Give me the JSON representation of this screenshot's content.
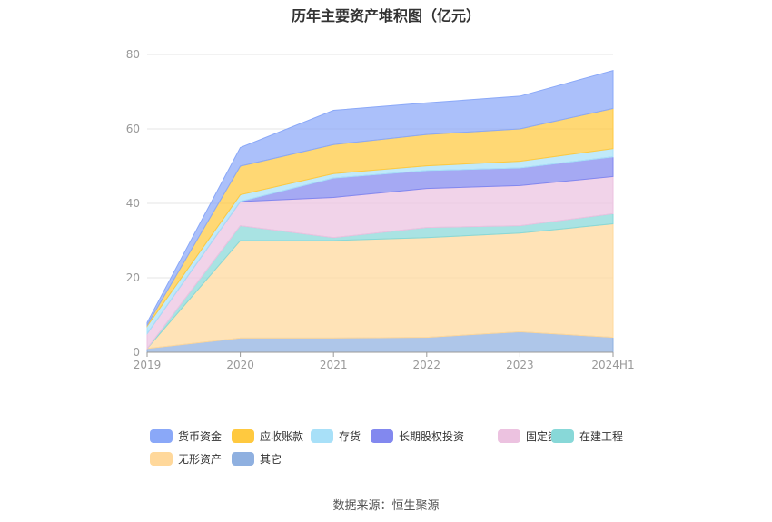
{
  "title": "历年主要资产堆积图（亿元）",
  "source": "数据来源：恒生聚源",
  "chart_data": {
    "type": "area",
    "stacked": true,
    "categories": [
      "2019",
      "2020",
      "2021",
      "2022",
      "2023",
      "2024H1"
    ],
    "ylim": [
      0,
      80
    ],
    "yticks": [
      0,
      20,
      40,
      60,
      80
    ],
    "grid": true,
    "legend_position": "bottom",
    "series": [
      {
        "name": "其它",
        "color": "#8fb0e0",
        "values": [
          1.0,
          3.8,
          3.8,
          4.0,
          5.5,
          4.0
        ]
      },
      {
        "name": "无形资产",
        "color": "#ffd89b",
        "values": [
          0.0,
          26.2,
          26.2,
          26.8,
          26.5,
          30.5
        ]
      },
      {
        "name": "在建工程",
        "color": "#88d8d8",
        "values": [
          0.0,
          4.0,
          0.8,
          2.7,
          2.0,
          2.7
        ]
      },
      {
        "name": "固定资产",
        "color": "#ecc2e0",
        "values": [
          4.0,
          6.5,
          10.8,
          10.5,
          10.8,
          10.0
        ]
      },
      {
        "name": "长期股权投资",
        "color": "#8288ef",
        "values": [
          0.0,
          0.0,
          5.2,
          4.8,
          4.7,
          5.3
        ]
      },
      {
        "name": "存货",
        "color": "#a8e0f8",
        "values": [
          2.0,
          1.8,
          1.2,
          1.3,
          1.8,
          2.2
        ]
      },
      {
        "name": "应收账款",
        "color": "#ffc93f",
        "values": [
          0.3,
          7.7,
          7.8,
          8.4,
          8.7,
          10.8
        ]
      },
      {
        "name": "货币资金",
        "color": "#8aa8f8",
        "values": [
          0.7,
          5.0,
          9.2,
          8.5,
          8.8,
          10.2
        ]
      }
    ]
  },
  "legend_order": [
    "货币资金",
    "应收账款",
    "存货",
    "长期股权投资",
    "固定资产",
    "在建工程",
    "无形资产",
    "其它"
  ]
}
